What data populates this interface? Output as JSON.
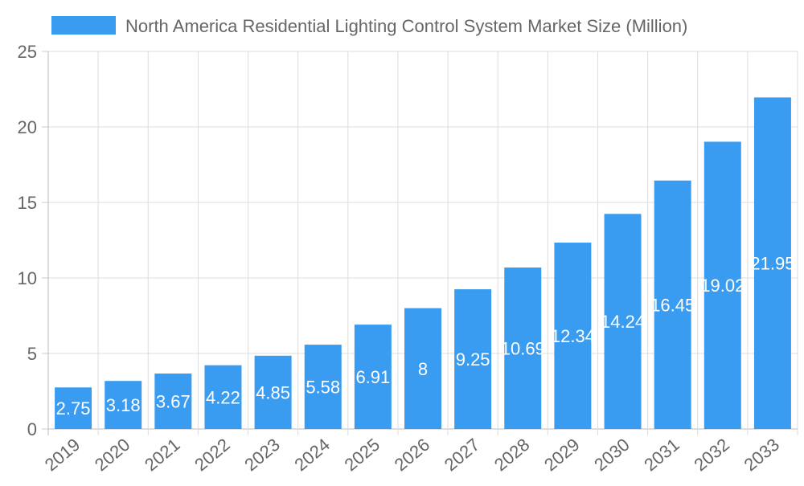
{
  "chart_data": {
    "type": "bar",
    "title": "",
    "xlabel": "",
    "ylabel": "",
    "categories": [
      "2019",
      "2020",
      "2021",
      "2022",
      "2023",
      "2024",
      "2025",
      "2026",
      "2027",
      "2028",
      "2029",
      "2030",
      "2031",
      "2032",
      "2033"
    ],
    "series": [
      {
        "name": "North America Residential Lighting Control System Market Size (Million)",
        "values": [
          2.75,
          3.18,
          3.67,
          4.22,
          4.85,
          5.58,
          6.91,
          8,
          9.25,
          10.69,
          12.34,
          14.24,
          16.45,
          19.02,
          21.95
        ],
        "color": "#3a9cf1"
      }
    ],
    "ylim": [
      0,
      25
    ],
    "yticks": [
      0,
      5,
      10,
      15,
      20,
      25
    ],
    "grid": true,
    "legend_placement": "top",
    "data_labels": true
  }
}
